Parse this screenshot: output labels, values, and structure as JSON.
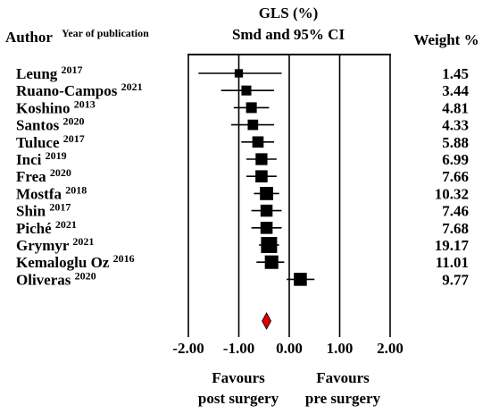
{
  "chart_data": {
    "type": "forest",
    "title": "GLS (%)",
    "subtitle": "Smd and 95% CI",
    "author_header": "Author",
    "year_header": "Year of publication",
    "weight_header": "Weight %",
    "xlim": [
      -2.0,
      2.0
    ],
    "xticks": [
      -2.0,
      -1.0,
      0.0,
      1.0,
      2.0
    ],
    "xtick_labels": [
      "-2.00",
      "-1.00",
      "0.00",
      "1.00",
      "2.00"
    ],
    "left_footer": [
      "Favours",
      "post surgery"
    ],
    "right_footer": [
      "Favours",
      "pre surgery"
    ],
    "studies": [
      {
        "author": "Leung",
        "year": "2017",
        "smd": -1.0,
        "lower": -1.8,
        "upper": -0.15,
        "weight": "1.45"
      },
      {
        "author": "Ruano-Campos",
        "year": "2021",
        "smd": -0.85,
        "lower": -1.35,
        "upper": -0.3,
        "weight": "3.44"
      },
      {
        "author": "Koshino",
        "year": "2013",
        "smd": -0.75,
        "lower": -1.1,
        "upper": -0.4,
        "weight": "4.81"
      },
      {
        "author": "Santos",
        "year": "2020",
        "smd": -0.72,
        "lower": -1.15,
        "upper": -0.3,
        "weight": "4.33"
      },
      {
        "author": "Tuluce",
        "year": "2017",
        "smd": -0.62,
        "lower": -0.95,
        "upper": -0.3,
        "weight": "5.88"
      },
      {
        "author": "Inci",
        "year": "2019",
        "smd": -0.55,
        "lower": -0.85,
        "upper": -0.25,
        "weight": "6.99"
      },
      {
        "author": "Frea",
        "year": "2020",
        "smd": -0.55,
        "lower": -0.85,
        "upper": -0.25,
        "weight": "7.66"
      },
      {
        "author": "Mostfa",
        "year": "2018",
        "smd": -0.45,
        "lower": -0.7,
        "upper": -0.2,
        "weight": "10.32"
      },
      {
        "author": "Shin",
        "year": "2017",
        "smd": -0.45,
        "lower": -0.75,
        "upper": -0.15,
        "weight": "7.46"
      },
      {
        "author": "Piché",
        "year": "2021",
        "smd": -0.45,
        "lower": -0.75,
        "upper": -0.15,
        "weight": "7.68"
      },
      {
        "author": "Grymyr",
        "year": "2021",
        "smd": -0.4,
        "lower": -0.6,
        "upper": -0.2,
        "weight": "19.17"
      },
      {
        "author": "Kemaloglu Oz",
        "year": "2016",
        "smd": -0.35,
        "lower": -0.65,
        "upper": -0.1,
        "weight": "11.01"
      },
      {
        "author": "Oliveras",
        "year": "2020",
        "smd": 0.22,
        "lower": -0.05,
        "upper": 0.5,
        "weight": "9.77"
      }
    ],
    "summary": {
      "smd": -0.45
    },
    "colors": {
      "summary": "#e00000",
      "marks": "#000000"
    }
  }
}
